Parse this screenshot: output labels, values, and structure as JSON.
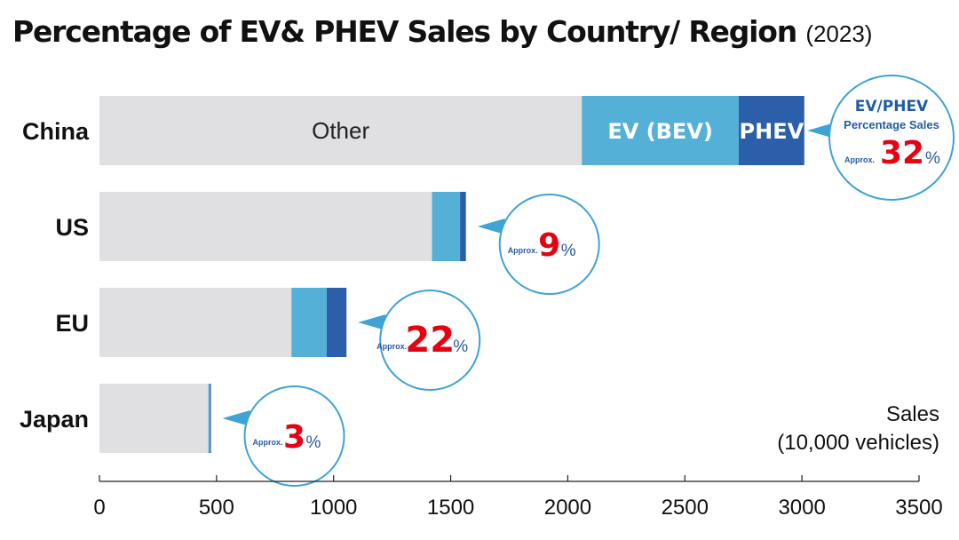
{
  "title": "Percentage of EV& PHEV Sales by Country/ Region",
  "title_year": "(2023)",
  "chart_data": {
    "type": "bar",
    "orientation": "horizontal",
    "stacked": true,
    "categories": [
      "China",
      "US",
      "EU",
      "Japan"
    ],
    "series": [
      {
        "name": "Other",
        "values": [
          2060,
          1420,
          820,
          465
        ],
        "color": "#e0e0e2"
      },
      {
        "name": "EV (BEV)",
        "values": [
          670,
          120,
          150,
          6
        ],
        "color": "#55b0d8"
      },
      {
        "name": "PHEV",
        "values": [
          280,
          25,
          85,
          5
        ],
        "color": "#2b5fa9"
      }
    ],
    "share_callouts": [
      {
        "category": "China",
        "title": "EV/PHEV",
        "subtitle": "Percentage Sales",
        "prefix": "Approx.",
        "value": "32",
        "suffix": "%"
      },
      {
        "category": "US",
        "prefix": "Approx.",
        "value": "9",
        "suffix": "%"
      },
      {
        "category": "EU",
        "prefix": "Approx.",
        "value": "22",
        "suffix": "%"
      },
      {
        "category": "Japan",
        "prefix": "Approx.",
        "value": "3",
        "suffix": "%"
      }
    ],
    "xlim": [
      0,
      3500
    ],
    "xticks": [
      0,
      500,
      1000,
      1500,
      2000,
      2500,
      3000,
      3500
    ],
    "xlabel_line1": "Sales",
    "xlabel_line2": "(10,000 vehicles)",
    "grid": false,
    "colors": {
      "callout_border": "#3fa3d4",
      "percent_value": "#e60012",
      "callout_text": "#2b5aa0"
    }
  }
}
